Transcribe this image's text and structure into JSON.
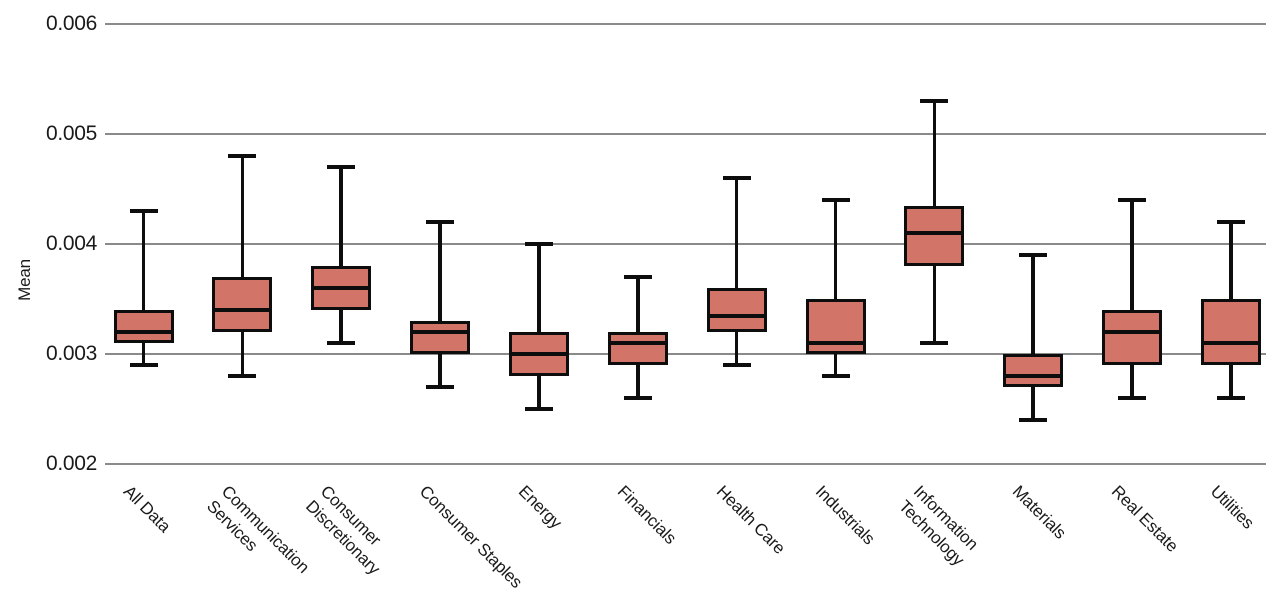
{
  "chart_data": {
    "type": "boxplot",
    "title": "",
    "xlabel": "",
    "ylabel": "Mean",
    "ylim": [
      0.002,
      0.006
    ],
    "yticks": [
      {
        "value": 0.002,
        "label": "0.002"
      },
      {
        "value": 0.003,
        "label": "0.003"
      },
      {
        "value": 0.004,
        "label": "0.004"
      },
      {
        "value": 0.005,
        "label": "0.005"
      },
      {
        "value": 0.006,
        "label": "0.006"
      }
    ],
    "grid": true,
    "legend": "none",
    "boxes": [
      {
        "label": "All Data",
        "whisker_low": 0.0029,
        "q1": 0.0031,
        "median": 0.0032,
        "q3": 0.0034,
        "whisker_high": 0.0043
      },
      {
        "label": "Communication\nServices",
        "whisker_low": 0.0028,
        "q1": 0.0032,
        "median": 0.0034,
        "q3": 0.0037,
        "whisker_high": 0.0048
      },
      {
        "label": "Consumer\nDiscretionary",
        "whisker_low": 0.0031,
        "q1": 0.0034,
        "median": 0.0036,
        "q3": 0.0038,
        "whisker_high": 0.0047
      },
      {
        "label": "Consumer Staples",
        "whisker_low": 0.0027,
        "q1": 0.003,
        "median": 0.0032,
        "q3": 0.0033,
        "whisker_high": 0.0042
      },
      {
        "label": "Energy",
        "whisker_low": 0.0025,
        "q1": 0.0028,
        "median": 0.003,
        "q3": 0.0032,
        "whisker_high": 0.004
      },
      {
        "label": "Financials",
        "whisker_low": 0.0026,
        "q1": 0.0029,
        "median": 0.0031,
        "q3": 0.0032,
        "whisker_high": 0.0037
      },
      {
        "label": "Health Care",
        "whisker_low": 0.0029,
        "q1": 0.0032,
        "median": 0.00335,
        "q3": 0.0036,
        "whisker_high": 0.0046
      },
      {
        "label": "Industrials",
        "whisker_low": 0.0028,
        "q1": 0.003,
        "median": 0.0031,
        "q3": 0.0035,
        "whisker_high": 0.0044
      },
      {
        "label": "Information\nTechnology",
        "whisker_low": 0.0031,
        "q1": 0.0038,
        "median": 0.0041,
        "q3": 0.00435,
        "whisker_high": 0.0053
      },
      {
        "label": "Materials",
        "whisker_low": 0.0024,
        "q1": 0.0027,
        "median": 0.0028,
        "q3": 0.003,
        "whisker_high": 0.0039
      },
      {
        "label": "Real Estate",
        "whisker_low": 0.0026,
        "q1": 0.0029,
        "median": 0.0032,
        "q3": 0.0034,
        "whisker_high": 0.0044
      },
      {
        "label": "Utilities",
        "whisker_low": 0.0026,
        "q1": 0.0029,
        "median": 0.0031,
        "q3": 0.0035,
        "whisker_high": 0.0042
      }
    ]
  },
  "style": {
    "box_fill": "#d27568",
    "line_color": "#0d0d0d",
    "grid_color": "#8a8a8a",
    "text_color": "#1a1a1a",
    "background": "#ffffff"
  }
}
